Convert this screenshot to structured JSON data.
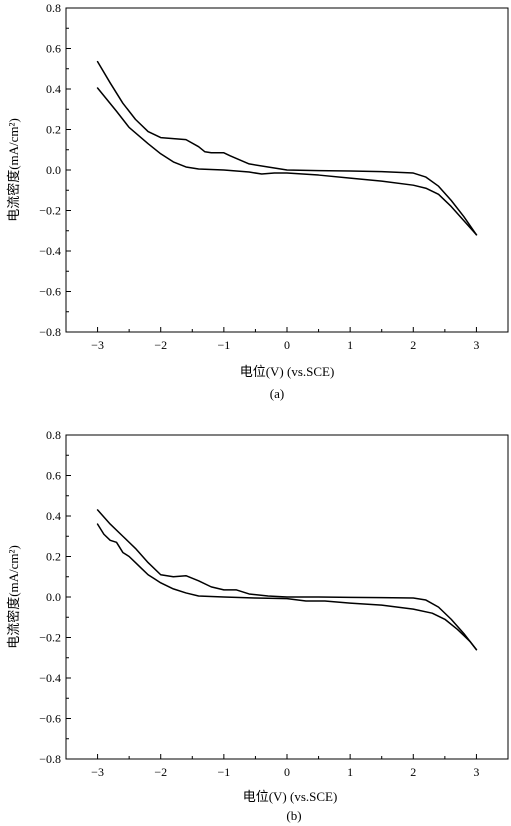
{
  "chart_data": [
    {
      "type": "line",
      "panel_label": "(a)",
      "xlabel": "电位(V)  (vs.SCE)",
      "ylabel": "电流密度(mA/cm²)",
      "xlim": [
        -3.5,
        3.5
      ],
      "ylim": [
        -0.8,
        0.8
      ],
      "x_ticks": [
        -3,
        -2,
        -1,
        0,
        1,
        2,
        3
      ],
      "y_ticks": [
        -0.8,
        -0.6,
        -0.4,
        -0.2,
        0.0,
        0.2,
        0.4,
        0.6,
        0.8
      ],
      "x_tick_labels": [
        "−3",
        "−2",
        "−1",
        "0",
        "1",
        "2",
        "3"
      ],
      "y_tick_labels": [
        "−0.8",
        "−0.6",
        "−0.4",
        "−0.2",
        "0.0",
        "0.2",
        "0.4",
        "0.6",
        "0.8"
      ],
      "grid": false,
      "series": [
        {
          "x": [
            -3.0,
            -2.8,
            -2.6,
            -2.4,
            -2.2,
            -2.0,
            -1.8,
            -1.6,
            -1.4,
            -1.3,
            -1.2,
            -1.0,
            -0.9,
            -0.6,
            -0.3,
            0.0,
            0.5,
            1.0,
            1.5,
            2.0,
            2.2,
            2.4,
            2.6,
            2.8,
            3.0
          ],
          "y": [
            0.535,
            0.43,
            0.33,
            0.25,
            0.19,
            0.16,
            0.155,
            0.15,
            0.115,
            0.09,
            0.085,
            0.085,
            0.07,
            0.03,
            0.015,
            0.0,
            -0.003,
            -0.005,
            -0.008,
            -0.015,
            -0.035,
            -0.08,
            -0.15,
            -0.23,
            -0.32
          ]
        },
        {
          "x": [
            -3.0,
            -2.7,
            -2.5,
            -2.2,
            -2.0,
            -1.8,
            -1.6,
            -1.4,
            -1.0,
            -0.6,
            -0.4,
            -0.2,
            0.0,
            0.5,
            1.0,
            1.5,
            2.0,
            2.2,
            2.4,
            2.6,
            2.8,
            3.0
          ],
          "y": [
            0.405,
            0.29,
            0.21,
            0.13,
            0.08,
            0.04,
            0.015,
            0.005,
            0.0,
            -0.01,
            -0.02,
            -0.015,
            -0.015,
            -0.025,
            -0.04,
            -0.055,
            -0.075,
            -0.09,
            -0.12,
            -0.18,
            -0.25,
            -0.32
          ]
        }
      ]
    },
    {
      "type": "line",
      "panel_label": "(b)",
      "xlabel": "电位(V)  (vs.SCE)",
      "ylabel": "电流密度(mA/cm²)",
      "xlim": [
        -3.5,
        3.5
      ],
      "ylim": [
        -0.8,
        0.8
      ],
      "x_ticks": [
        -3,
        -2,
        -1,
        0,
        1,
        2,
        3
      ],
      "y_ticks": [
        -0.8,
        -0.6,
        -0.4,
        -0.2,
        0.0,
        0.2,
        0.4,
        0.6,
        0.8
      ],
      "x_tick_labels": [
        "−3",
        "−2",
        "−1",
        "0",
        "1",
        "2",
        "3"
      ],
      "y_tick_labels": [
        "−0.8",
        "−0.6",
        "−0.4",
        "−0.2",
        "0.0",
        "0.2",
        "0.4",
        "0.6",
        "0.8"
      ],
      "grid": false,
      "series": [
        {
          "x": [
            -3.0,
            -2.8,
            -2.6,
            -2.4,
            -2.2,
            -2.0,
            -1.8,
            -1.6,
            -1.4,
            -1.2,
            -1.0,
            -0.8,
            -0.6,
            -0.3,
            0.0,
            0.5,
            1.0,
            1.5,
            2.0,
            2.2,
            2.4,
            2.6,
            2.8,
            3.0
          ],
          "y": [
            0.43,
            0.36,
            0.3,
            0.24,
            0.17,
            0.11,
            0.1,
            0.105,
            0.08,
            0.05,
            0.035,
            0.035,
            0.015,
            0.005,
            0.0,
            0.0,
            -0.002,
            -0.003,
            -0.005,
            -0.015,
            -0.05,
            -0.11,
            -0.18,
            -0.26
          ]
        },
        {
          "x": [
            -3.0,
            -2.9,
            -2.8,
            -2.7,
            -2.6,
            -2.5,
            -2.4,
            -2.3,
            -2.2,
            -2.1,
            -2.0,
            -1.8,
            -1.6,
            -1.4,
            -1.0,
            -0.5,
            0.0,
            0.3,
            0.6,
            1.0,
            1.5,
            2.0,
            2.3,
            2.5,
            2.7,
            2.9,
            3.0
          ],
          "y": [
            0.36,
            0.31,
            0.28,
            0.27,
            0.22,
            0.2,
            0.17,
            0.14,
            0.11,
            0.09,
            0.07,
            0.04,
            0.02,
            0.005,
            0.0,
            -0.005,
            -0.008,
            -0.02,
            -0.02,
            -0.03,
            -0.04,
            -0.06,
            -0.08,
            -0.11,
            -0.16,
            -0.22,
            -0.26
          ]
        }
      ]
    }
  ]
}
